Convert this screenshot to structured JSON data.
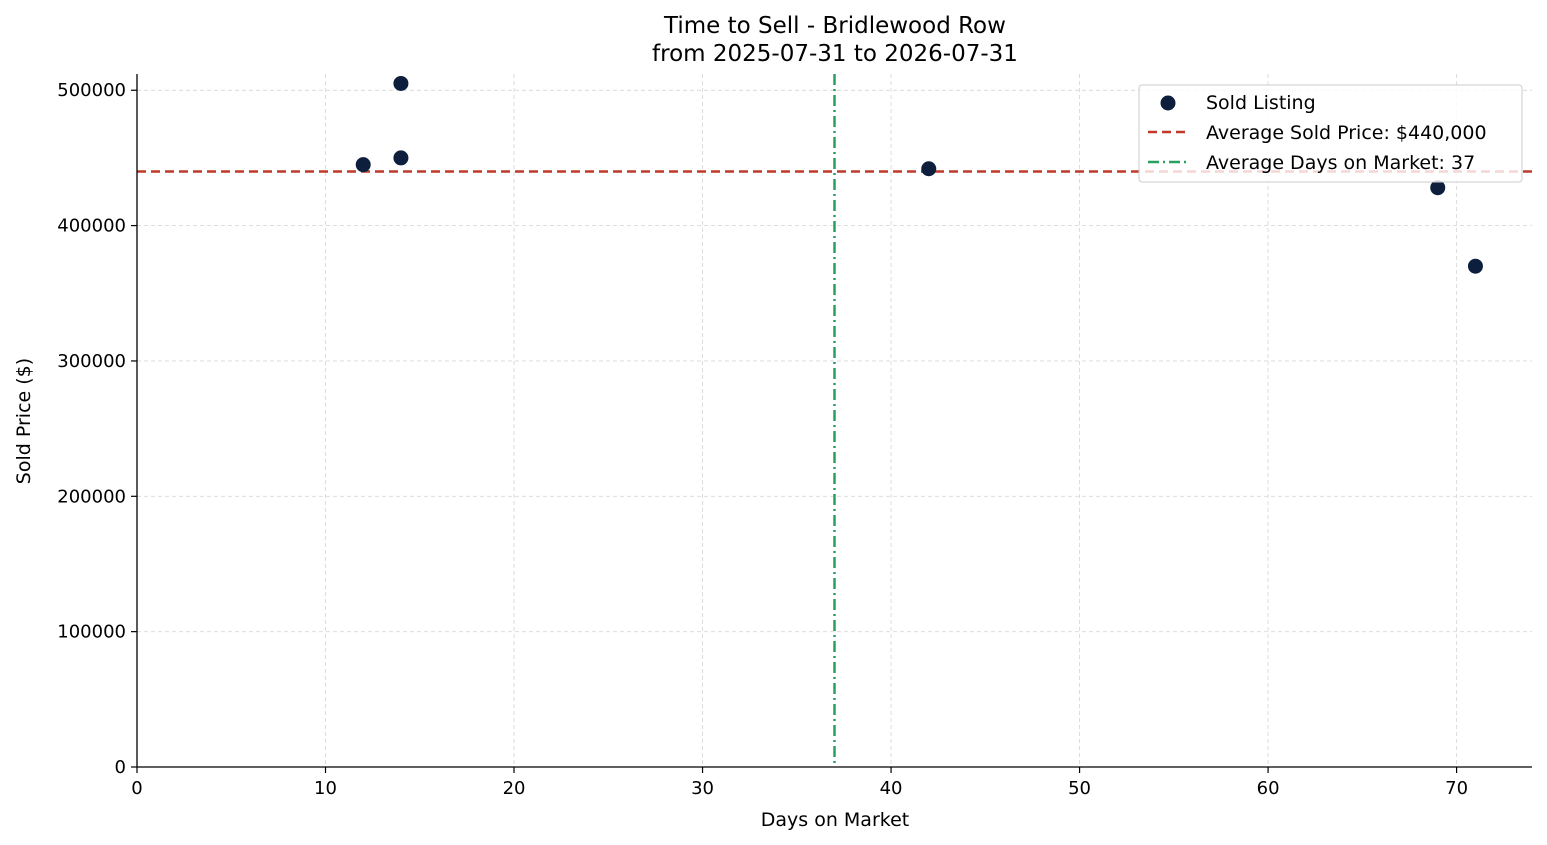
{
  "chart_data": {
    "type": "scatter",
    "title": "Time to Sell - Bridlewood Row",
    "subtitle": "from 2025-07-31 to 2026-07-31",
    "xlabel": "Days on Market",
    "ylabel": "Sold Price ($)",
    "xlim": [
      0,
      74
    ],
    "ylim": [
      0,
      512000
    ],
    "xticks": [
      0,
      10,
      20,
      30,
      40,
      50,
      60,
      70
    ],
    "yticks": [
      0,
      100000,
      200000,
      300000,
      400000,
      500000
    ],
    "xtick_labels": [
      "0",
      "10",
      "20",
      "30",
      "40",
      "50",
      "60",
      "70"
    ],
    "ytick_labels": [
      "0",
      "100000",
      "200000",
      "300000",
      "400000",
      "500000"
    ],
    "grid": true,
    "legend_position": "top-right",
    "series": [
      {
        "name": "Sold Listing",
        "color": "#0d1f3c",
        "points": [
          {
            "x": 12,
            "y": 445000
          },
          {
            "x": 14,
            "y": 505000
          },
          {
            "x": 14,
            "y": 450000
          },
          {
            "x": 42,
            "y": 442000
          },
          {
            "x": 69,
            "y": 428000
          },
          {
            "x": 71,
            "y": 370000
          }
        ]
      }
    ],
    "reference_lines": [
      {
        "name": "Average Sold Price: $440,000",
        "orientation": "horizontal",
        "value": 440000,
        "color": "#c0392b",
        "style": "dashed"
      },
      {
        "name": "Average Days on Market: 37",
        "orientation": "vertical",
        "value": 37,
        "color": "#27a060",
        "style": "dashdot"
      }
    ]
  }
}
